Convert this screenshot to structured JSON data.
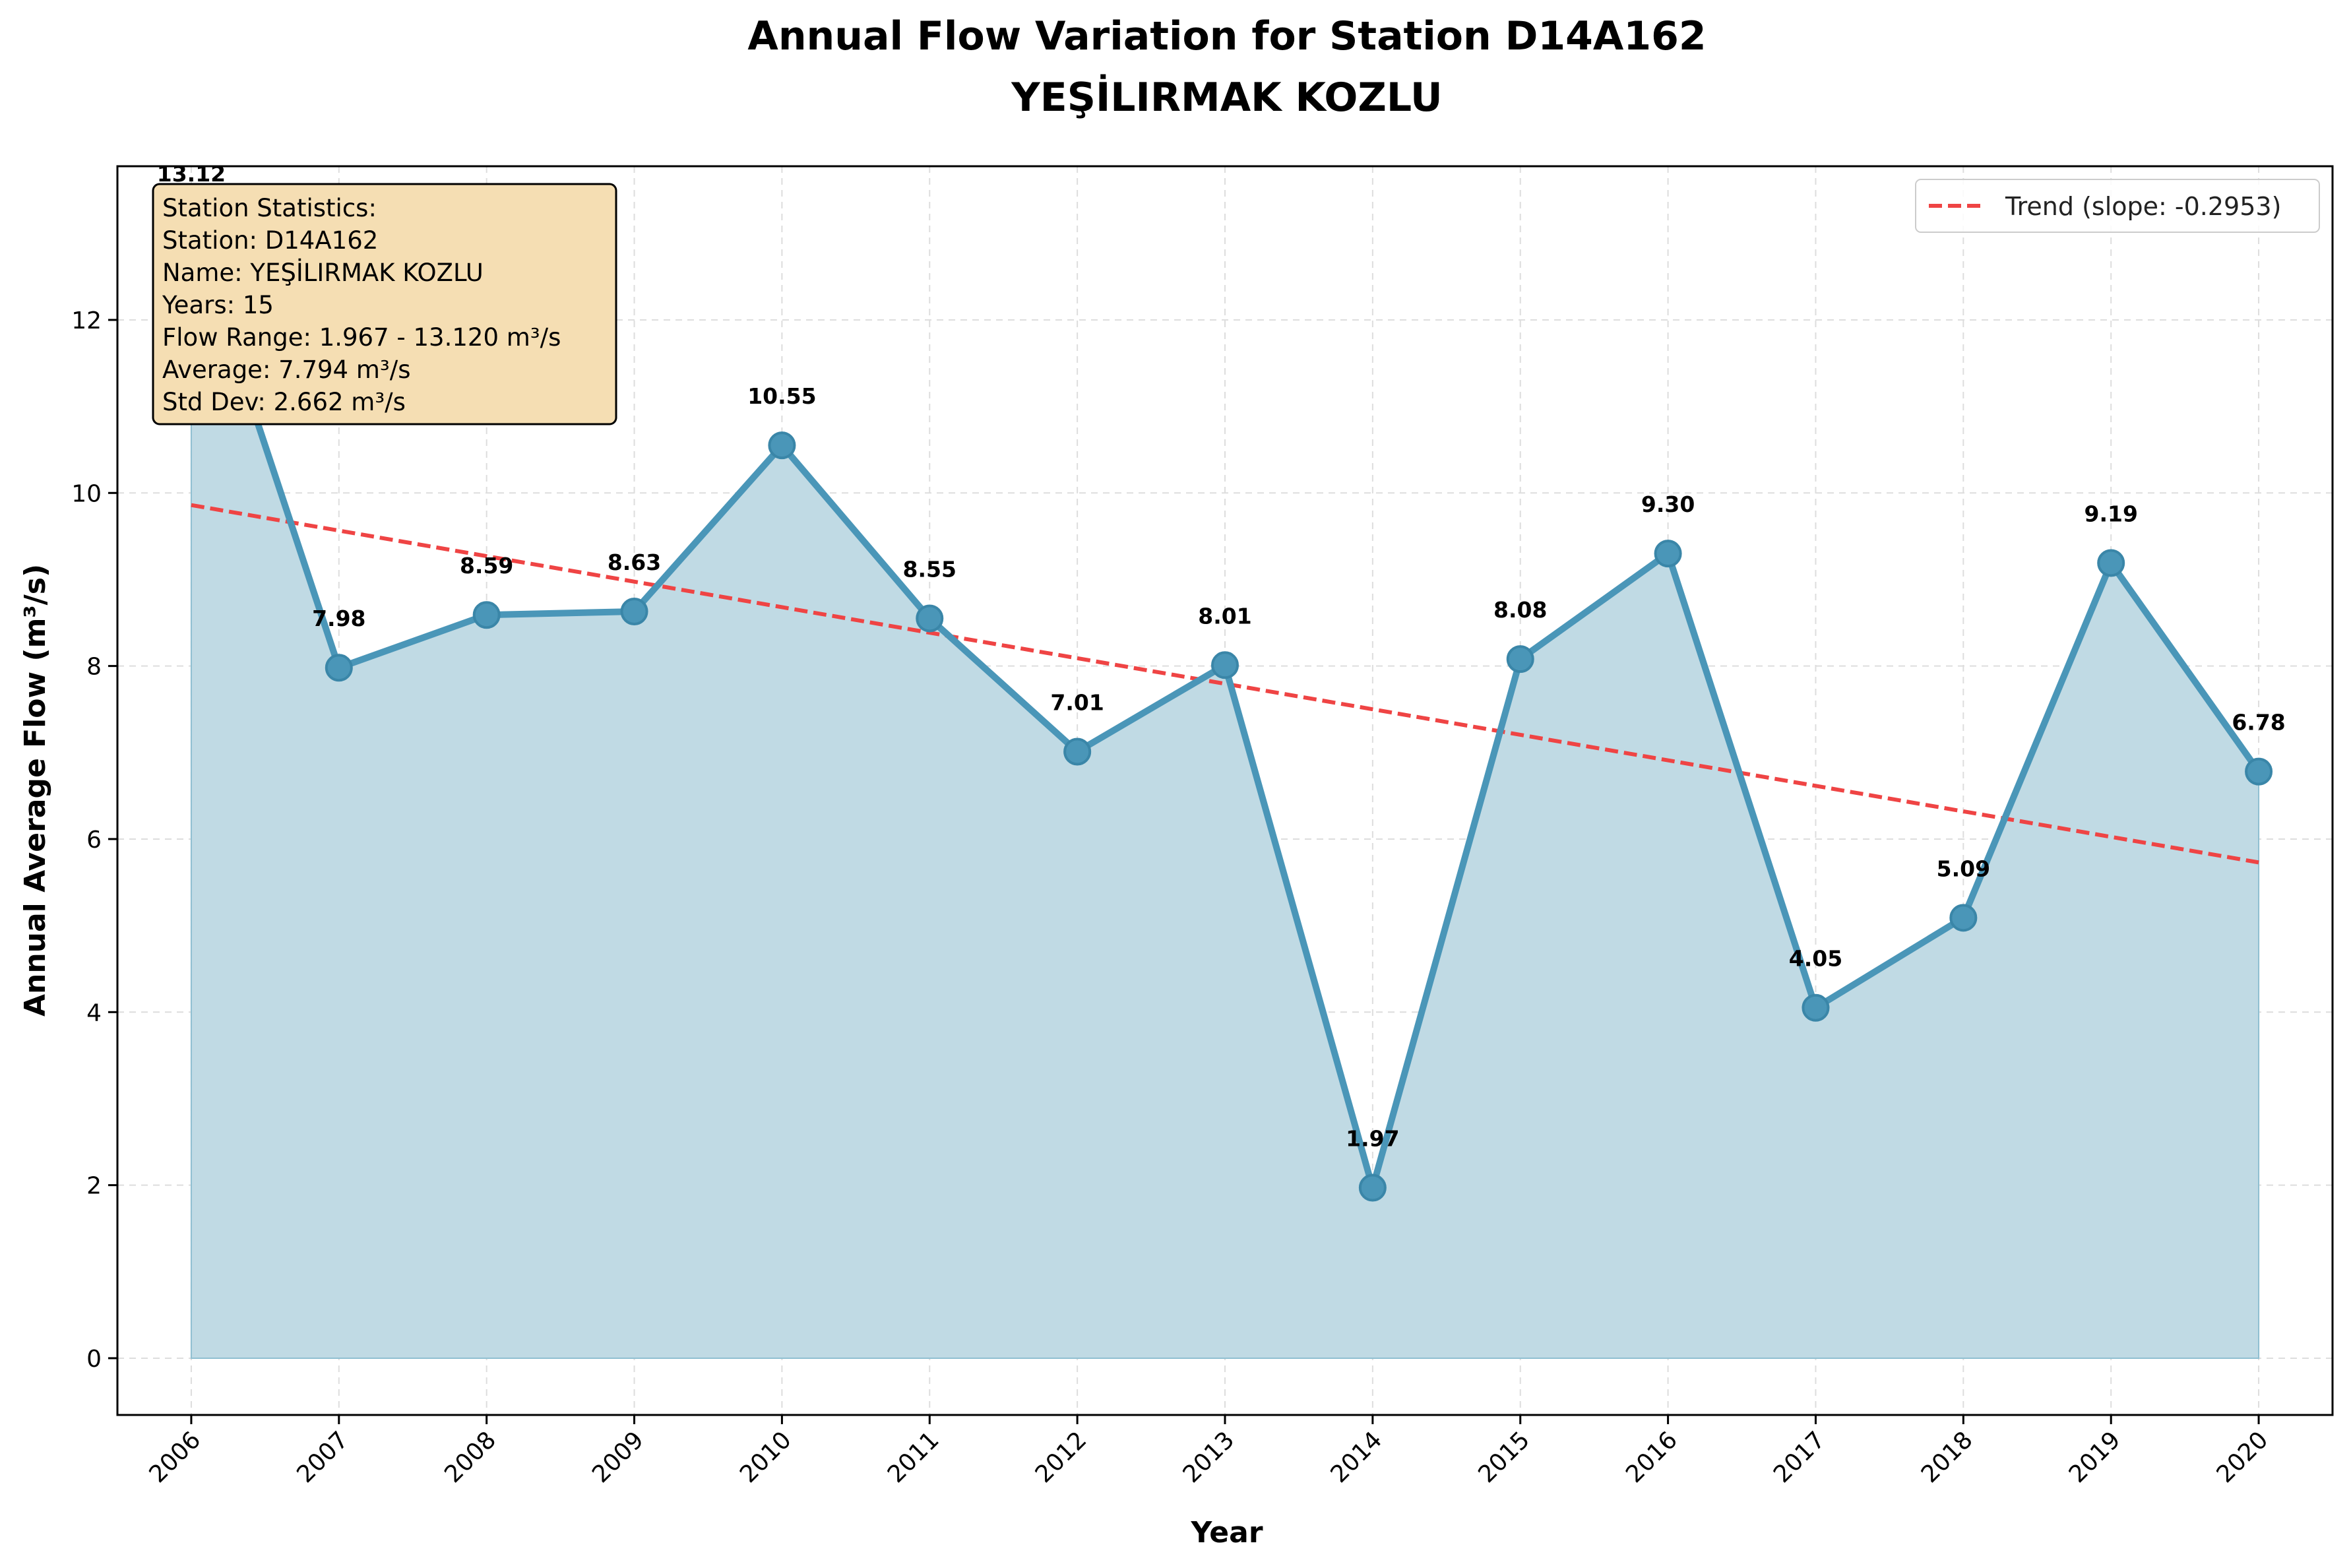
{
  "chart_data": {
    "type": "line",
    "title_line1": "Annual Flow Variation for Station D14A162",
    "title_line2": "YEŞİLIRMAK KOZLU",
    "xlabel": "Year",
    "ylabel": "Annual Average Flow (m³/s)",
    "x": [
      2006,
      2007,
      2008,
      2009,
      2010,
      2011,
      2012,
      2013,
      2014,
      2015,
      2016,
      2017,
      2018,
      2019,
      2020
    ],
    "x_tick_labels": [
      "2006",
      "2007",
      "2008",
      "2009",
      "2010",
      "2011",
      "2012",
      "2013",
      "2014",
      "2015",
      "2016",
      "2017",
      "2018",
      "2019",
      "2020"
    ],
    "values": [
      13.12,
      7.98,
      8.59,
      8.63,
      10.55,
      8.55,
      7.01,
      8.01,
      1.97,
      8.08,
      9.3,
      4.05,
      5.09,
      9.19,
      6.78
    ],
    "data_labels": [
      "13.12",
      "7.98",
      "8.59",
      "8.63",
      "10.55",
      "8.55",
      "7.01",
      "8.01",
      "1.97",
      "8.08",
      "9.30",
      "4.05",
      "5.09",
      "9.19",
      "6.78"
    ],
    "y_ticks": [
      0,
      2,
      4,
      6,
      8,
      10,
      12
    ],
    "y_tick_labels": [
      "0",
      "2",
      "4",
      "6",
      "8",
      "10",
      "12"
    ],
    "xlim": [
      2005.5,
      2020.5
    ],
    "ylim": [
      -0.656,
      13.776
    ],
    "grid": true,
    "area_fill": true,
    "trend": {
      "label": "Trend (slope: -0.2953)",
      "start": [
        2006,
        9.86
      ],
      "end": [
        2020,
        5.73
      ],
      "dashed": true
    },
    "legend_position": "top-right",
    "stats_box": {
      "lines": [
        "Station Statistics:",
        "Station: D14A162",
        "Name: YEŞİLIRMAK KOZLU",
        "Years: 15",
        "Flow Range: 1.967 - 13.120 m³/s",
        "Average: 7.794 m³/s",
        "Std Dev: 2.662 m³/s"
      ],
      "position": "top-left"
    },
    "colors": {
      "line": "#4a96b8",
      "fill": "#c0dae4",
      "fill_edge": "#8fbfd1",
      "trend": "#ef4444",
      "stats_box_bg": "#f5deb3",
      "grid": "#dddddd"
    }
  }
}
